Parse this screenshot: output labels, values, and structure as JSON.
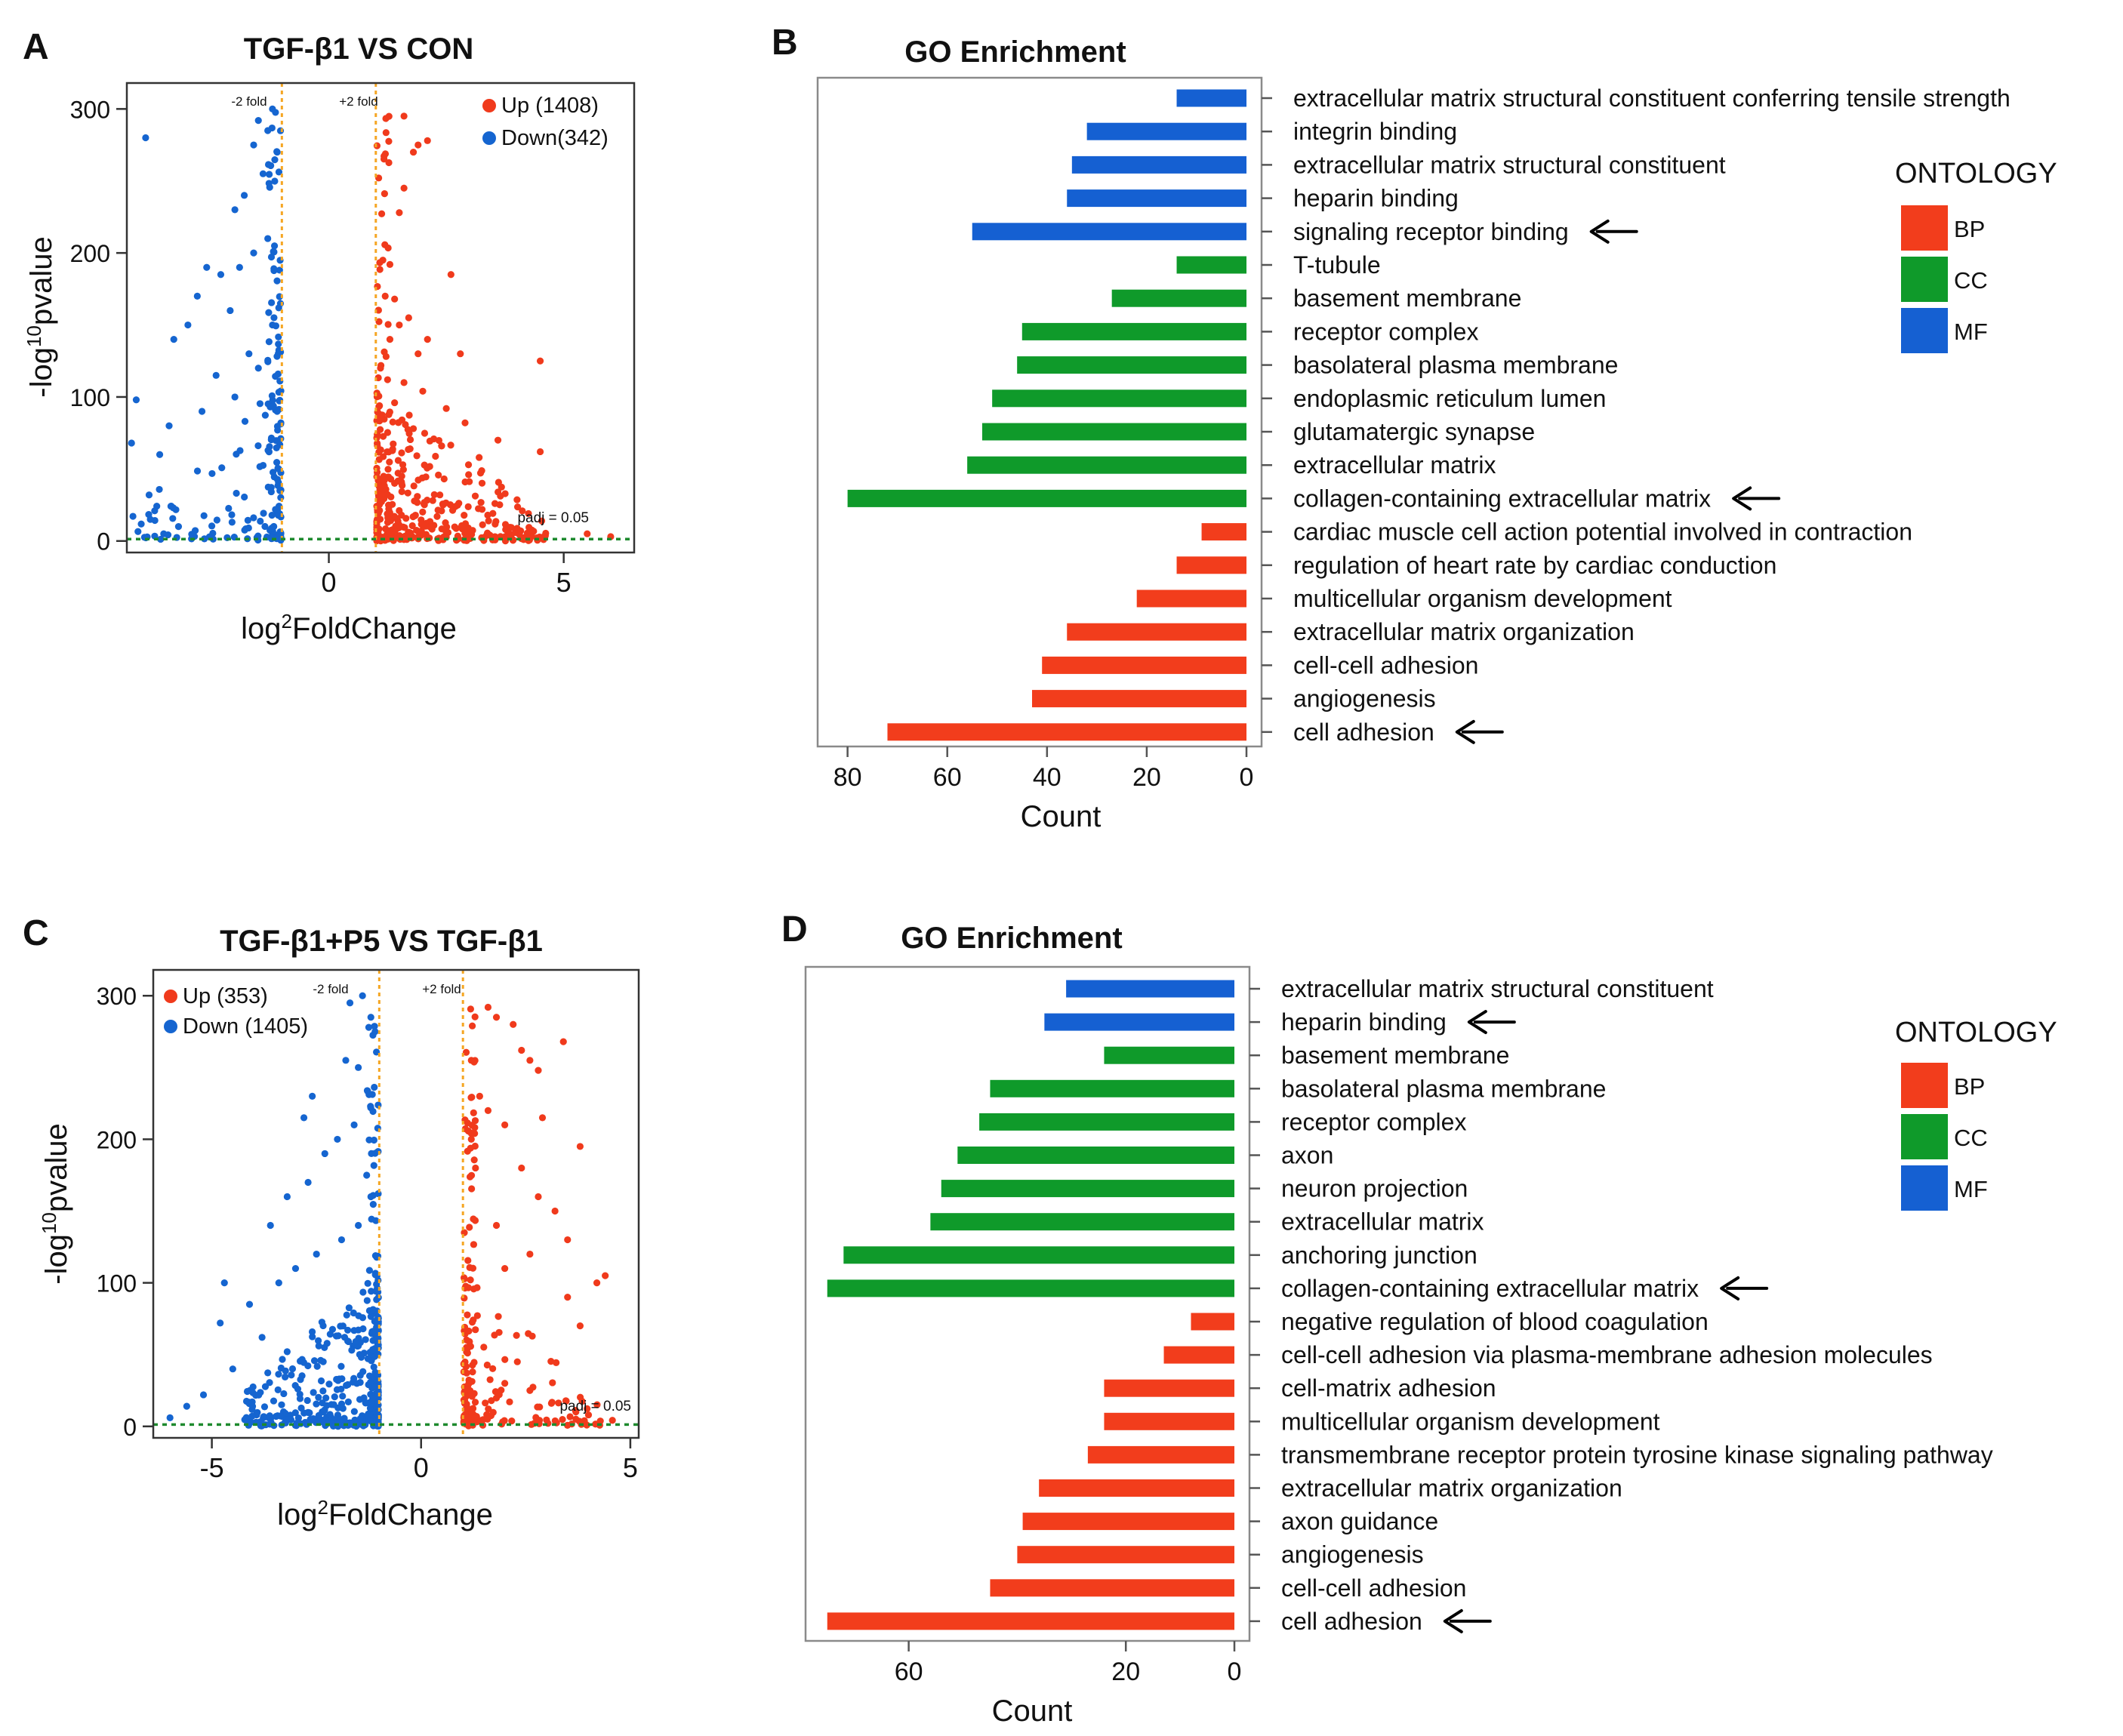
{
  "colors": {
    "up": "#f03a1c",
    "down": "#1565d0",
    "BP": "#f23d1c",
    "CC": "#0f9a2a",
    "MF": "#1560d2",
    "fold_line": "#f5a623",
    "padj_line": "#1e8a2e",
    "arrow": "#000000"
  },
  "chart_data": [
    {
      "panel": "A",
      "type": "scatter",
      "title": "TGF-β1 VS CON",
      "xlabel": "log2FoldChange",
      "xlabel_main": "log",
      "xlabel_sup": "2",
      "xlabel_rest": "FoldChange",
      "ylabel": "-log10pvalue",
      "ylabel_main": "-log",
      "ylabel_sup": "10",
      "ylabel_rest": "pvalue",
      "xlim": [
        -4.3,
        6.5
      ],
      "ylim": [
        -8,
        318
      ],
      "xticks": [
        0,
        5
      ],
      "yticks": [
        0,
        100,
        200,
        300
      ],
      "legend_position": "top-right",
      "legend": [
        {
          "key": "up",
          "label": "Up (1408)"
        },
        {
          "key": "down",
          "label": "Down(342)"
        }
      ],
      "fold_lines": [
        -1,
        1
      ],
      "fold_labels": [
        "-2 fold",
        "+2 fold"
      ],
      "padj_line": 1.3,
      "padj_label": "padj = 0.05",
      "up_points": [
        [
          1.6,
          295
        ],
        [
          1.8,
          270
        ],
        [
          1.6,
          245
        ],
        [
          1.5,
          228
        ],
        [
          1.9,
          275
        ],
        [
          2.1,
          278
        ],
        [
          2.6,
          185
        ],
        [
          1.15,
          195
        ],
        [
          1.3,
          192
        ],
        [
          1.2,
          170
        ],
        [
          1.4,
          168
        ],
        [
          1.5,
          150
        ],
        [
          1.7,
          155
        ],
        [
          1.9,
          130
        ],
        [
          2.1,
          140
        ],
        [
          2.8,
          130
        ],
        [
          4.5,
          125
        ],
        [
          1.3,
          140
        ],
        [
          1.1,
          120
        ],
        [
          1.25,
          112
        ],
        [
          1.6,
          110
        ],
        [
          2.0,
          104
        ],
        [
          2.5,
          92
        ],
        [
          2.9,
          82
        ],
        [
          3.6,
          70
        ],
        [
          4.5,
          62
        ],
        [
          3.2,
          58
        ],
        [
          2.4,
          66
        ],
        [
          1.8,
          78
        ],
        [
          1.4,
          96
        ],
        [
          5.5,
          5
        ],
        [
          6.0,
          3
        ]
      ],
      "down_points": [
        [
          -1.5,
          292
        ],
        [
          -1.3,
          285
        ],
        [
          -1.2,
          300
        ],
        [
          -1.6,
          275
        ],
        [
          -1.4,
          255
        ],
        [
          -1.8,
          240
        ],
        [
          -2.0,
          230
        ],
        [
          -1.1,
          270
        ],
        [
          -1.3,
          210
        ],
        [
          -1.6,
          200
        ],
        [
          -1.9,
          190
        ],
        [
          -2.3,
          185
        ],
        [
          -2.6,
          190
        ],
        [
          -2.8,
          170
        ],
        [
          -3.0,
          150
        ],
        [
          -3.3,
          140
        ],
        [
          -3.9,
          280
        ],
        [
          -2.1,
          160
        ],
        [
          -1.7,
          130
        ],
        [
          -1.5,
          120
        ],
        [
          -2.4,
          115
        ],
        [
          -2.0,
          100
        ],
        [
          -2.7,
          90
        ],
        [
          -3.4,
          80
        ],
        [
          -3.6,
          60
        ],
        [
          -4.1,
          98
        ],
        [
          -4.2,
          68
        ],
        [
          -3.8,
          15
        ],
        [
          -3.2,
          10
        ],
        [
          -1.2,
          150
        ],
        [
          -1.1,
          90
        ]
      ],
      "up_count": 1408,
      "down_count": 342
    },
    {
      "panel": "B",
      "type": "bar",
      "orientation": "horizontal",
      "title": "GO Enrichment",
      "xlabel": "Count",
      "xlim": [
        0,
        86
      ],
      "xticks": [
        80,
        60,
        40,
        20,
        0
      ],
      "legend_title": "ONTOLOGY",
      "legend": [
        {
          "key": "BP",
          "label": "BP"
        },
        {
          "key": "CC",
          "label": "CC"
        },
        {
          "key": "MF",
          "label": "MF"
        }
      ],
      "categories": [
        "extracellular matrix structural constituent conferring tensile strength",
        "integrin binding",
        "extracellular matrix structural constituent",
        "heparin binding",
        "signaling receptor binding",
        "T-tubule",
        "basement membrane",
        "receptor complex",
        "basolateral plasma membrane",
        "endoplasmic reticulum lumen",
        "glutamatergic synapse",
        "extracellular matrix",
        "collagen-containing extracellular matrix",
        "cardiac muscle cell action potential involved in contraction",
        "regulation of heart rate by cardiac conduction",
        "multicellular organism development",
        "extracellular matrix organization",
        "cell-cell adhesion",
        "angiogenesis",
        "cell adhesion"
      ],
      "values": [
        14,
        32,
        35,
        36,
        55,
        14,
        27,
        45,
        46,
        51,
        53,
        56,
        80,
        9,
        14,
        22,
        36,
        41,
        43,
        72
      ],
      "ontology": [
        "MF",
        "MF",
        "MF",
        "MF",
        "MF",
        "CC",
        "CC",
        "CC",
        "CC",
        "CC",
        "CC",
        "CC",
        "CC",
        "BP",
        "BP",
        "BP",
        "BP",
        "BP",
        "BP",
        "BP"
      ],
      "arrow_indices": [
        4,
        12,
        19
      ]
    },
    {
      "panel": "C",
      "type": "scatter",
      "title": "TGF-β1+P5 VS TGF-β1",
      "xlabel": "log2FoldChange",
      "xlabel_main": "log",
      "xlabel_sup": "2",
      "xlabel_rest": "FoldChange",
      "ylabel": "-log10pvalue",
      "ylabel_main": "-log",
      "ylabel_sup": "10",
      "ylabel_rest": "pvalue",
      "xlim": [
        -6.4,
        5.2
      ],
      "ylim": [
        -8,
        318
      ],
      "xticks": [
        -5,
        0,
        5
      ],
      "yticks": [
        0,
        100,
        200,
        300
      ],
      "legend_position": "top-left",
      "legend": [
        {
          "key": "up",
          "label": "Up (353)"
        },
        {
          "key": "down",
          "label": "Down (1405)"
        }
      ],
      "fold_lines": [
        -1,
        1
      ],
      "fold_labels": [
        "-2 fold",
        "+2 fold"
      ],
      "padj_line": 1.3,
      "padj_label": "padj = 0.05",
      "up_points": [
        [
          1.6,
          292
        ],
        [
          1.8,
          285
        ],
        [
          2.2,
          280
        ],
        [
          2.4,
          262
        ],
        [
          2.6,
          255
        ],
        [
          2.8,
          248
        ],
        [
          3.4,
          268
        ],
        [
          2.9,
          215
        ],
        [
          3.8,
          195
        ],
        [
          1.2,
          255
        ],
        [
          1.4,
          230
        ],
        [
          1.6,
          220
        ],
        [
          2.0,
          210
        ],
        [
          2.4,
          180
        ],
        [
          2.8,
          160
        ],
        [
          3.2,
          150
        ],
        [
          3.5,
          130
        ],
        [
          4.2,
          100
        ],
        [
          4.4,
          105
        ],
        [
          3.8,
          70
        ],
        [
          3.5,
          90
        ],
        [
          2.6,
          120
        ],
        [
          2.0,
          110
        ],
        [
          1.8,
          140
        ],
        [
          1.3,
          180
        ],
        [
          1.2,
          200
        ],
        [
          3.7,
          5
        ],
        [
          4.0,
          8
        ],
        [
          2.3,
          45
        ],
        [
          2.0,
          30
        ],
        [
          2.6,
          25
        ]
      ],
      "down_points": [
        [
          -1.4,
          300
        ],
        [
          -1.7,
          295
        ],
        [
          -1.2,
          285
        ],
        [
          -1.1,
          275
        ],
        [
          -1.8,
          255
        ],
        [
          -1.5,
          250
        ],
        [
          -1.6,
          210
        ],
        [
          -2.6,
          230
        ],
        [
          -2.8,
          215
        ],
        [
          -2.0,
          200
        ],
        [
          -2.3,
          190
        ],
        [
          -1.3,
          175
        ],
        [
          -2.7,
          170
        ],
        [
          -3.2,
          160
        ],
        [
          -3.6,
          140
        ],
        [
          -1.9,
          130
        ],
        [
          -2.5,
          120
        ],
        [
          -3.0,
          110
        ],
        [
          -3.4,
          100
        ],
        [
          -4.7,
          100
        ],
        [
          -4.1,
          85
        ],
        [
          -4.8,
          72
        ],
        [
          -3.8,
          62
        ],
        [
          -3.2,
          52
        ],
        [
          -4.5,
          40
        ],
        [
          -5.2,
          22
        ],
        [
          -5.6,
          14
        ],
        [
          -6.0,
          6
        ],
        [
          -1.2,
          160
        ],
        [
          -1.5,
          140
        ]
      ],
      "up_count": 353,
      "down_count": 1405
    },
    {
      "panel": "D",
      "type": "bar",
      "orientation": "horizontal",
      "title": "GO Enrichment",
      "xlabel": "Count",
      "xlim": [
        0,
        79
      ],
      "xticks": [
        60,
        20,
        0
      ],
      "legend_title": "ONTOLOGY",
      "legend": [
        {
          "key": "BP",
          "label": "BP"
        },
        {
          "key": "CC",
          "label": "CC"
        },
        {
          "key": "MF",
          "label": "MF"
        }
      ],
      "categories": [
        "extracellular matrix structural constituent",
        "heparin binding",
        "basement membrane",
        "basolateral plasma membrane",
        "receptor complex",
        "axon",
        "neuron projection",
        "extracellular matrix",
        "anchoring junction",
        "collagen-containing extracellular matrix",
        " negative regulation of blood coagulation",
        "cell-cell adhesion via plasma-membrane adhesion molecules",
        "cell-matrix adhesion",
        "multicellular organism development",
        "transmembrane receptor protein tyrosine kinase signaling pathway",
        "extracellular matrix organization",
        "axon guidance",
        " angiogenesis",
        " cell-cell adhesion",
        "cell adhesion"
      ],
      "values": [
        31,
        35,
        24,
        45,
        47,
        51,
        54,
        56,
        72,
        75,
        8,
        13,
        24,
        24,
        27,
        36,
        39,
        40,
        45,
        75
      ],
      "ontology": [
        "MF",
        "MF",
        "CC",
        "CC",
        "CC",
        "CC",
        "CC",
        "CC",
        "CC",
        "CC",
        "BP",
        "BP",
        "BP",
        "BP",
        "BP",
        "BP",
        "BP",
        "BP",
        "BP",
        "BP"
      ],
      "arrow_indices": [
        1,
        9,
        19
      ]
    }
  ]
}
